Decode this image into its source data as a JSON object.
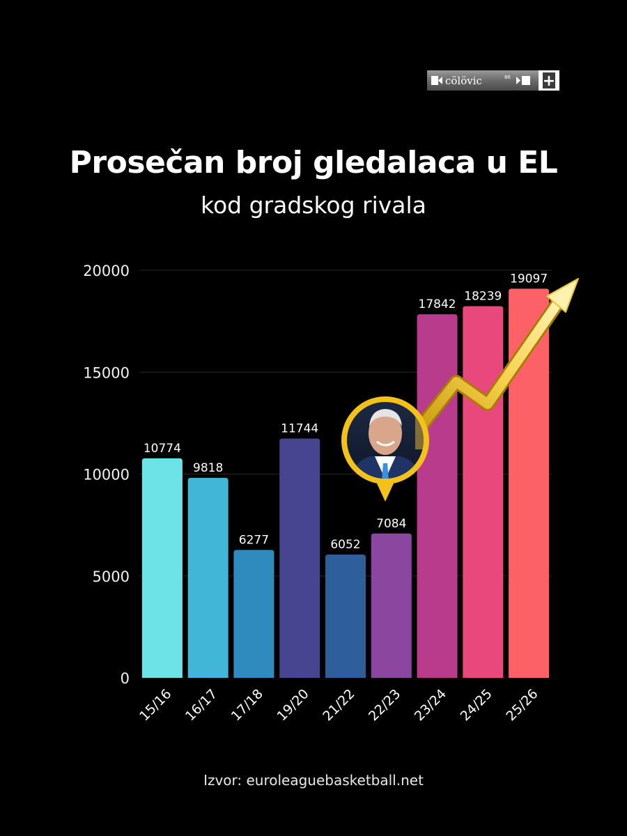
{
  "brand": {
    "name": "cölövic",
    "superscript": "86",
    "plus_symbol": "+"
  },
  "header": {
    "title": "Prosečan broj gledalaca u EL",
    "subtitle": "kod gradskog rivala"
  },
  "footer": {
    "source": "Izvor: euroleaguebasketball.net"
  },
  "chart_data": {
    "type": "bar",
    "title": "Prosečan broj gledalaca u EL",
    "subtitle": "kod gradskog rivala",
    "categories": [
      "15/16",
      "16/17",
      "17/18",
      "19/20",
      "21/22",
      "22/23",
      "23/24",
      "24/25",
      "25/26"
    ],
    "values": [
      10774,
      9818,
      6277,
      11744,
      6052,
      7084,
      17842,
      18239,
      19097
    ],
    "bar_colors": [
      "#6de3e8",
      "#42b6d6",
      "#2f8bbd",
      "#474590",
      "#2f5f9a",
      "#8b46a0",
      "#b93c8c",
      "#e8487c",
      "#fd6168"
    ],
    "ylim": [
      0,
      20000
    ],
    "yticks": [
      0,
      5000,
      10000,
      15000,
      20000
    ],
    "grid": true,
    "data_labels": true,
    "xlabel": "",
    "ylabel": "",
    "annotations": [
      "upward-trend-arrow",
      "coach-portrait-badge"
    ],
    "accent_color": "#f2c21b"
  }
}
